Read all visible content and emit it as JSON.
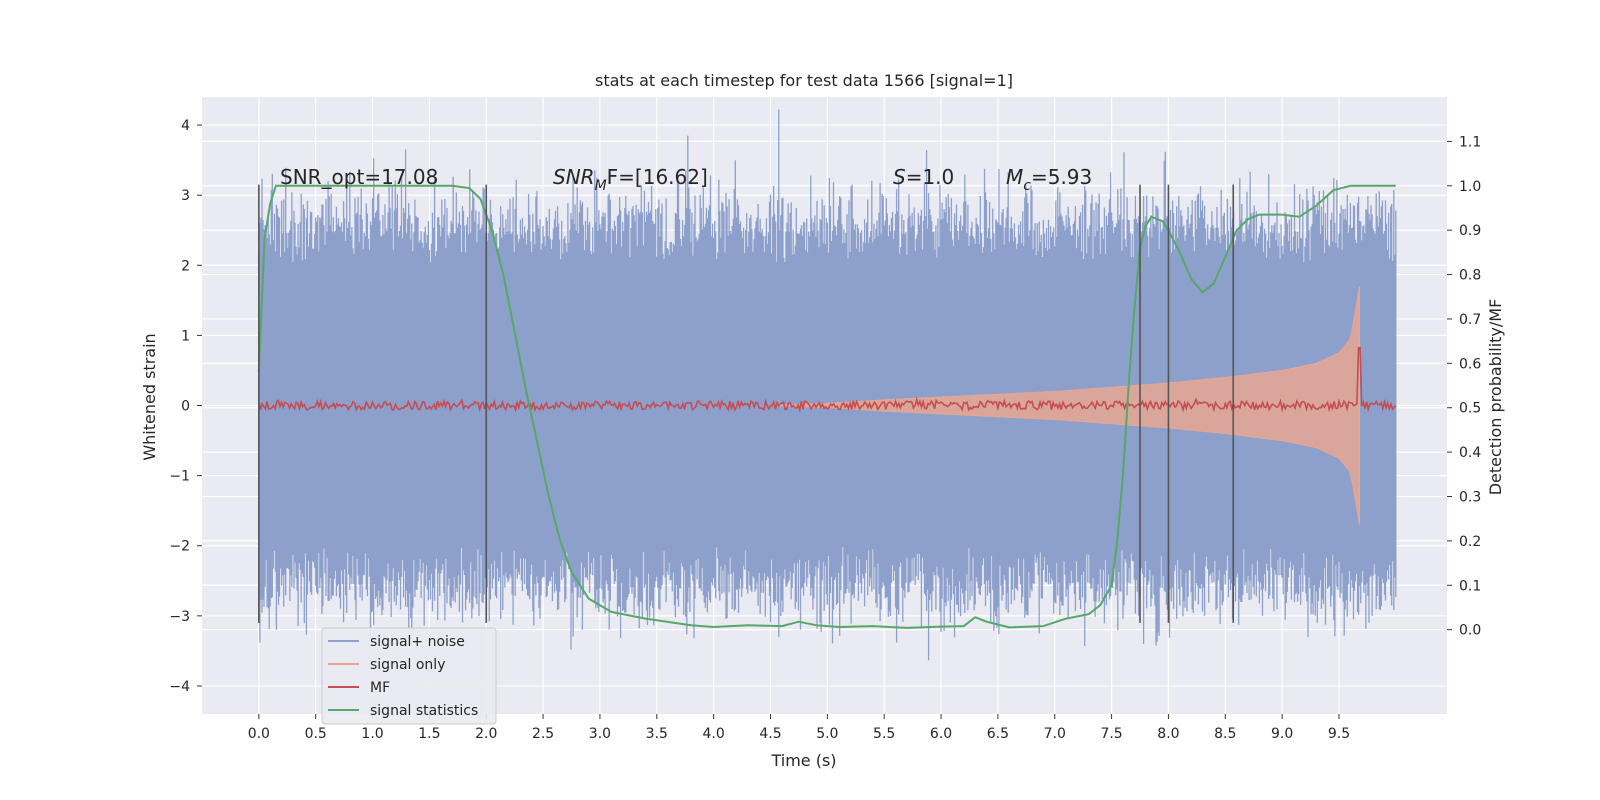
{
  "chart_data": {
    "type": "line",
    "title": "stats at each timestep for test data 1566 [signal=1]",
    "xlabel": "Time (s)",
    "ylabel": "Whitened strain",
    "y2label": "Detection probability/MF",
    "xlim": [
      -0.5,
      10.45
    ],
    "ylim": [
      -4.4,
      4.4
    ],
    "y2lim": [
      -0.19,
      1.2
    ],
    "grid": true,
    "legend_position": "lower-left",
    "xticks": [
      0.0,
      0.5,
      1.0,
      1.5,
      2.0,
      2.5,
      3.0,
      3.5,
      4.0,
      4.5,
      5.0,
      5.5,
      6.0,
      6.5,
      7.0,
      7.5,
      8.0,
      8.5,
      9.0,
      9.5
    ],
    "xtick_labels": [
      "0.0",
      "0.5",
      "1.0",
      "1.5",
      "2.0",
      "2.5",
      "3.0",
      "3.5",
      "4.0",
      "4.5",
      "5.0",
      "5.5",
      "6.0",
      "6.5",
      "7.0",
      "7.5",
      "8.0",
      "8.5",
      "9.0",
      "9.5"
    ],
    "yticks": [
      4,
      3,
      2,
      1,
      0,
      -1,
      -2,
      -3,
      -4
    ],
    "ytick_labels": [
      "4",
      "3",
      "2",
      "1",
      "0",
      "−1",
      "−2",
      "−3",
      "−4"
    ],
    "y2ticks": [
      1.1,
      1.0,
      0.9,
      0.8,
      0.7,
      0.6,
      0.5,
      0.4,
      0.3,
      0.2,
      0.1,
      0.0
    ],
    "y2tick_labels": [
      "1.1",
      "1.0",
      "0.9",
      "0.8",
      "0.7",
      "0.6",
      "0.5",
      "0.4",
      "0.3",
      "0.2",
      "0.1",
      "0.0"
    ],
    "annotations": {
      "snr_opt": "SNR_opt=17.08",
      "snr_mf_main": "SNR",
      "snr_mf_sub": "M",
      "snr_mf_rest": "F=[16.62]",
      "s_main": "S",
      "s_rest": "=1.0",
      "mc_main": "M",
      "mc_sub": "c",
      "mc_rest": "=5.93"
    },
    "vertical_markers": [
      0.0,
      2.0,
      7.75,
      8.0,
      8.57
    ],
    "vertical_marker_range": [
      -3.1,
      3.15
    ],
    "series": [
      {
        "name": "signal+ noise",
        "color": "#8da0cb",
        "axis": "left",
        "kind": "noise",
        "x_range": [
          0.0,
          10.0
        ],
        "envelope": [
          2.0,
          2.7
        ]
      },
      {
        "name": "signal only",
        "color": "#e8a793",
        "axis": "left",
        "kind": "chirp",
        "x": [
          4.5,
          5.0,
          5.5,
          6.0,
          6.5,
          7.0,
          7.5,
          8.0,
          8.5,
          9.0,
          9.3,
          9.5,
          9.6,
          9.65,
          9.68
        ],
        "amplitude": [
          0.0,
          0.03,
          0.08,
          0.12,
          0.16,
          0.2,
          0.26,
          0.32,
          0.4,
          0.5,
          0.6,
          0.75,
          0.95,
          1.4,
          1.7
        ]
      },
      {
        "name": "MF",
        "color": "#c44e52",
        "axis": "right",
        "kind": "mf",
        "x_range": [
          0.0,
          10.0
        ],
        "baseline": 0.505,
        "peak": {
          "x": 9.68,
          "value": 0.635
        }
      },
      {
        "name": "signal statistics",
        "color": "#55a868",
        "axis": "right",
        "kind": "line",
        "x": [
          0.0,
          0.05,
          0.1,
          0.15,
          0.3,
          0.6,
          1.0,
          1.4,
          1.7,
          1.85,
          1.95,
          2.05,
          2.15,
          2.25,
          2.35,
          2.45,
          2.55,
          2.65,
          2.75,
          2.9,
          3.1,
          3.4,
          3.8,
          4.0,
          4.3,
          4.6,
          4.75,
          4.9,
          5.1,
          5.4,
          5.7,
          6.0,
          6.2,
          6.3,
          6.4,
          6.6,
          6.9,
          7.1,
          7.3,
          7.4,
          7.5,
          7.55,
          7.6,
          7.65,
          7.7,
          7.75,
          7.8,
          7.85,
          7.9,
          7.95,
          8.0,
          8.1,
          8.2,
          8.3,
          8.4,
          8.5,
          8.6,
          8.7,
          8.8,
          9.0,
          9.15,
          9.3,
          9.45,
          9.6,
          9.75,
          10.0
        ],
        "y": [
          0.58,
          0.88,
          0.96,
          1.0,
          1.0,
          1.0,
          1.0,
          1.0,
          1.0,
          0.995,
          0.97,
          0.9,
          0.8,
          0.67,
          0.54,
          0.42,
          0.3,
          0.2,
          0.13,
          0.07,
          0.04,
          0.025,
          0.01,
          0.006,
          0.01,
          0.008,
          0.018,
          0.01,
          0.006,
          0.008,
          0.004,
          0.007,
          0.008,
          0.028,
          0.018,
          0.005,
          0.008,
          0.025,
          0.035,
          0.055,
          0.1,
          0.2,
          0.35,
          0.55,
          0.72,
          0.86,
          0.91,
          0.93,
          0.925,
          0.92,
          0.9,
          0.85,
          0.79,
          0.76,
          0.78,
          0.84,
          0.9,
          0.925,
          0.935,
          0.935,
          0.93,
          0.955,
          0.99,
          1.0,
          1.0,
          1.0
        ]
      }
    ]
  }
}
